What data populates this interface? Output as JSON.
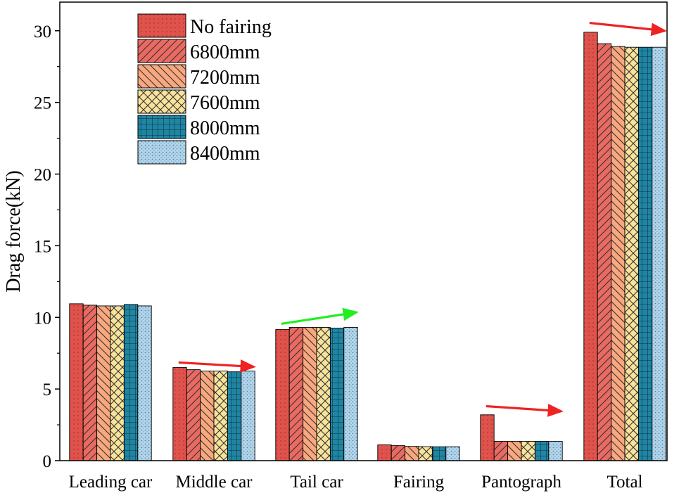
{
  "chart_data": {
    "type": "bar",
    "title": "",
    "xlabel": "",
    "ylabel": "Drag force(kN)",
    "ylim": [
      0,
      32
    ],
    "yticks": [
      0,
      5,
      10,
      15,
      20,
      25,
      30
    ],
    "grid": false,
    "legend_position": "top-left",
    "categories": [
      "Leading car",
      "Middle car",
      "Tail car",
      "Fairing",
      "Pantograph",
      "Total"
    ],
    "series": [
      {
        "name": "No fairing",
        "values": [
          10.95,
          6.5,
          9.15,
          1.1,
          3.2,
          29.9
        ],
        "color": "#e0524c",
        "pattern": "dots"
      },
      {
        "name": "6800mm",
        "values": [
          10.85,
          6.35,
          9.3,
          1.05,
          1.35,
          29.1
        ],
        "color": "#ea6a62",
        "pattern": "diag-right"
      },
      {
        "name": "7200mm",
        "values": [
          10.8,
          6.25,
          9.3,
          1.0,
          1.35,
          28.9
        ],
        "color": "#f9a77e",
        "pattern": "diag-left"
      },
      {
        "name": "7600mm",
        "values": [
          10.8,
          6.25,
          9.3,
          0.98,
          1.35,
          28.85
        ],
        "color": "#f9e39b",
        "pattern": "cross"
      },
      {
        "name": "8000mm",
        "values": [
          10.9,
          6.2,
          9.25,
          0.97,
          1.35,
          28.85
        ],
        "color": "#1f85a3",
        "pattern": "grid"
      },
      {
        "name": "8400mm",
        "values": [
          10.8,
          6.25,
          9.3,
          0.97,
          1.35,
          28.85
        ],
        "color": "#b3d6ec",
        "pattern": "fine-dots"
      }
    ],
    "annotations": [
      {
        "type": "trend-arrow",
        "category": "Middle car",
        "color": "#ee2222",
        "from_value": 6.85,
        "to_value": 6.55
      },
      {
        "type": "trend-arrow",
        "category": "Tail car",
        "color": "#22ee22",
        "from_value": 9.55,
        "to_value": 10.35
      },
      {
        "type": "trend-arrow",
        "category": "Pantograph",
        "color": "#ee2222",
        "from_value": 3.8,
        "to_value": 3.45
      },
      {
        "type": "trend-arrow",
        "category": "Total",
        "color": "#ee2222",
        "from_value": 30.55,
        "to_value": 30.0
      }
    ]
  }
}
